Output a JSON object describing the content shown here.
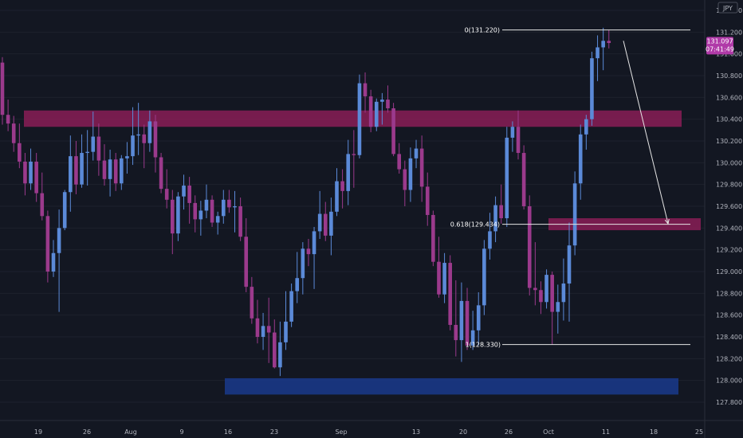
{
  "chart_data": {
    "type": "candlestick",
    "symbol_badge": "JPY",
    "current_price": "131.097",
    "countdown": "07:41:49",
    "y_axis": {
      "min": 127.8,
      "max": 131.4,
      "ticks": [
        "131.400",
        "131.200",
        "131.000",
        "130.800",
        "130.600",
        "130.400",
        "130.200",
        "130.000",
        "129.800",
        "129.600",
        "129.400",
        "129.200",
        "129.000",
        "128.800",
        "128.600",
        "128.400",
        "128.200",
        "128.000",
        "127.800"
      ]
    },
    "x_ticks": [
      "19",
      "26",
      "Aug",
      "9",
      "16",
      "23",
      "Sep",
      "13",
      "20",
      "26",
      "Oct",
      "11",
      "18",
      "25"
    ],
    "fib_levels": [
      {
        "label": "0(131.220)",
        "price": 131.22
      },
      {
        "label": "0.618(129.434)",
        "price": 129.434
      },
      {
        "label": "1(128.330)",
        "price": 128.33
      }
    ],
    "zones": [
      {
        "name": "resistance-zone",
        "low": 130.33,
        "high": 130.48,
        "color": "#8a1d56"
      },
      {
        "name": "target-zone",
        "low": 129.38,
        "high": 129.49,
        "color": "#8a1d56"
      },
      {
        "name": "support-zone",
        "low": 127.87,
        "high": 128.02,
        "color": "#1a3a8c"
      }
    ],
    "projection_arrow": {
      "from_price": 131.12,
      "to_price": 129.44
    },
    "colors": {
      "up": "#5b8ad8",
      "down": "#9b3a8c",
      "price_tag": "#b03aa8",
      "background": "#131722"
    },
    "candles": [
      [
        130.92,
        130.97,
        130.35,
        130.44
      ],
      [
        130.44,
        130.58,
        130.29,
        130.36
      ],
      [
        130.36,
        130.43,
        130.1,
        130.18
      ],
      [
        130.18,
        130.36,
        129.95,
        130.01
      ],
      [
        130.01,
        130.09,
        129.7,
        129.81
      ],
      [
        129.81,
        130.13,
        129.75,
        130.01
      ],
      [
        130.01,
        130.09,
        129.64,
        129.72
      ],
      [
        129.72,
        129.91,
        129.47,
        129.51
      ],
      [
        129.51,
        129.56,
        128.9,
        129.0
      ],
      [
        129.0,
        129.29,
        128.95,
        129.17
      ],
      [
        129.17,
        129.57,
        128.63,
        129.4
      ],
      [
        129.4,
        129.75,
        129.38,
        129.73
      ],
      [
        129.73,
        130.25,
        129.55,
        130.06
      ],
      [
        130.06,
        130.2,
        129.71,
        129.8
      ],
      [
        129.8,
        130.26,
        129.77,
        130.09
      ],
      [
        130.09,
        130.3,
        129.79,
        130.1
      ],
      [
        130.1,
        130.47,
        130.02,
        130.24
      ],
      [
        130.24,
        130.36,
        129.88,
        130.02
      ],
      [
        130.02,
        130.17,
        129.79,
        129.85
      ],
      [
        129.85,
        130.12,
        129.69,
        130.03
      ],
      [
        130.03,
        130.09,
        129.74,
        129.81
      ],
      [
        129.81,
        130.07,
        129.75,
        130.04
      ],
      [
        130.04,
        130.19,
        129.9,
        130.06
      ],
      [
        130.06,
        130.51,
        129.98,
        130.25
      ],
      [
        130.25,
        130.55,
        130.07,
        130.26
      ],
      [
        130.26,
        130.35,
        129.95,
        130.18
      ],
      [
        130.18,
        130.48,
        130.1,
        130.38
      ],
      [
        130.38,
        130.44,
        129.91,
        130.05
      ],
      [
        130.05,
        130.09,
        129.72,
        129.76
      ],
      [
        129.76,
        129.94,
        129.58,
        129.66
      ],
      [
        129.66,
        129.75,
        129.16,
        129.35
      ],
      [
        129.35,
        129.73,
        129.28,
        129.69
      ],
      [
        129.69,
        129.89,
        129.57,
        129.79
      ],
      [
        129.79,
        129.87,
        129.44,
        129.63
      ],
      [
        129.63,
        129.7,
        129.36,
        129.48
      ],
      [
        129.48,
        129.65,
        129.33,
        129.56
      ],
      [
        129.56,
        129.8,
        129.49,
        129.66
      ],
      [
        129.66,
        129.7,
        129.41,
        129.45
      ],
      [
        129.45,
        129.55,
        129.34,
        129.51
      ],
      [
        129.51,
        129.75,
        129.44,
        129.66
      ],
      [
        129.66,
        129.75,
        129.54,
        129.59
      ],
      [
        129.59,
        129.74,
        129.36,
        129.6
      ],
      [
        129.6,
        129.68,
        129.28,
        129.32
      ],
      [
        129.32,
        129.49,
        128.81,
        128.86
      ],
      [
        128.86,
        128.95,
        128.52,
        128.57
      ],
      [
        128.57,
        128.74,
        128.34,
        128.4
      ],
      [
        128.4,
        128.62,
        128.28,
        128.5
      ],
      [
        128.5,
        128.76,
        128.16,
        128.44
      ],
      [
        128.44,
        128.56,
        128.11,
        128.12
      ],
      [
        128.12,
        128.54,
        128.04,
        128.35
      ],
      [
        128.35,
        128.82,
        128.28,
        128.54
      ],
      [
        128.54,
        128.89,
        128.49,
        128.82
      ],
      [
        128.82,
        129.18,
        128.71,
        128.94
      ],
      [
        128.94,
        129.27,
        128.79,
        129.21
      ],
      [
        129.21,
        129.3,
        129.05,
        129.16
      ],
      [
        129.16,
        129.41,
        128.84,
        129.37
      ],
      [
        129.37,
        129.74,
        129.3,
        129.53
      ],
      [
        129.53,
        129.64,
        129.28,
        129.33
      ],
      [
        129.33,
        129.68,
        129.15,
        129.55
      ],
      [
        129.55,
        129.95,
        129.51,
        129.83
      ],
      [
        129.83,
        129.94,
        129.58,
        129.74
      ],
      [
        129.74,
        130.21,
        129.61,
        130.08
      ],
      [
        130.08,
        130.3,
        129.77,
        130.07
      ],
      [
        130.07,
        130.81,
        130.04,
        130.73
      ],
      [
        130.73,
        130.83,
        130.46,
        130.61
      ],
      [
        130.61,
        130.67,
        130.28,
        130.33
      ],
      [
        130.33,
        130.59,
        130.29,
        130.56
      ],
      [
        130.56,
        130.64,
        130.35,
        130.58
      ],
      [
        130.58,
        130.71,
        130.46,
        130.5
      ],
      [
        130.5,
        130.55,
        130.06,
        130.08
      ],
      [
        130.08,
        130.18,
        129.9,
        129.94
      ],
      [
        129.94,
        130.02,
        129.6,
        129.75
      ],
      [
        129.75,
        130.14,
        129.64,
        130.04
      ],
      [
        130.04,
        130.21,
        129.95,
        130.13
      ],
      [
        130.13,
        130.25,
        129.64,
        129.78
      ],
      [
        129.78,
        129.91,
        129.42,
        129.52
      ],
      [
        129.52,
        129.56,
        129.05,
        129.09
      ],
      [
        129.09,
        129.32,
        128.76,
        128.79
      ],
      [
        128.79,
        129.17,
        128.71,
        129.08
      ],
      [
        129.08,
        129.15,
        128.46,
        128.51
      ],
      [
        128.51,
        128.92,
        128.22,
        128.37
      ],
      [
        128.37,
        128.9,
        128.17,
        128.73
      ],
      [
        128.73,
        128.85,
        128.28,
        128.32
      ],
      [
        128.32,
        128.64,
        128.28,
        128.46
      ],
      [
        128.46,
        128.81,
        128.32,
        128.69
      ],
      [
        128.69,
        129.29,
        128.6,
        129.21
      ],
      [
        129.21,
        129.54,
        129.11,
        129.37
      ],
      [
        129.37,
        129.69,
        129.27,
        129.61
      ],
      [
        129.61,
        129.8,
        129.44,
        129.49
      ],
      [
        129.49,
        130.33,
        129.41,
        130.23
      ],
      [
        130.23,
        130.38,
        130.1,
        130.33
      ],
      [
        130.33,
        130.48,
        130.03,
        130.09
      ],
      [
        130.09,
        130.16,
        129.57,
        129.6
      ],
      [
        129.6,
        129.7,
        128.78,
        128.85
      ],
      [
        128.85,
        129.27,
        128.69,
        128.83
      ],
      [
        128.83,
        128.91,
        128.61,
        128.72
      ],
      [
        128.72,
        129.02,
        128.66,
        128.97
      ],
      [
        128.97,
        129.0,
        128.33,
        128.63
      ],
      [
        128.63,
        128.88,
        128.43,
        128.72
      ],
      [
        128.72,
        129.12,
        128.55,
        128.89
      ],
      [
        128.89,
        129.45,
        128.54,
        129.24
      ],
      [
        129.24,
        129.92,
        129.15,
        129.81
      ],
      [
        129.81,
        130.35,
        129.66,
        130.26
      ],
      [
        130.26,
        130.44,
        130.12,
        130.4
      ],
      [
        130.4,
        131.02,
        130.34,
        130.96
      ],
      [
        130.96,
        131.17,
        130.75,
        131.06
      ],
      [
        131.06,
        131.24,
        130.85,
        131.12
      ],
      [
        131.12,
        131.22,
        131.05,
        131.1
      ]
    ]
  }
}
